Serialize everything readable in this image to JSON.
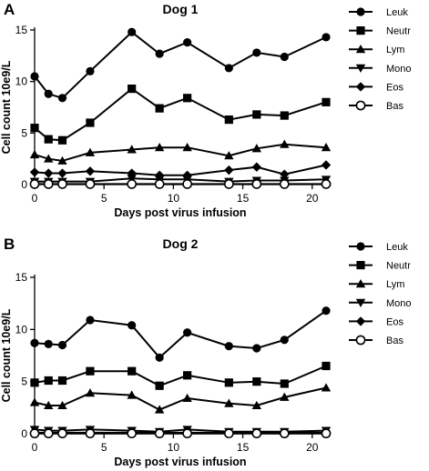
{
  "chart_data": [
    {
      "type": "line",
      "panel_label": "A",
      "title": "Dog 1",
      "xlabel": "Days post virus infusion",
      "ylabel": "Cell count 10e9/L",
      "xlim": [
        0,
        21
      ],
      "ylim": [
        0,
        15
      ],
      "xticks": [
        0,
        5,
        10,
        15,
        20
      ],
      "yticks": [
        0,
        5,
        10,
        15
      ],
      "legend_position": "right",
      "x": [
        0,
        1,
        2,
        4,
        7,
        9,
        11,
        14,
        16,
        18,
        21
      ],
      "series": [
        {
          "name": "Leuk",
          "marker": "circle-filled",
          "values": [
            10.5,
            8.8,
            8.4,
            11.0,
            14.8,
            12.7,
            13.8,
            11.3,
            12.8,
            12.4,
            14.3
          ]
        },
        {
          "name": "Neutr",
          "marker": "square-filled",
          "values": [
            5.5,
            4.4,
            4.3,
            6.0,
            9.3,
            7.4,
            8.4,
            6.3,
            6.8,
            6.7,
            8.0
          ]
        },
        {
          "name": "Lym",
          "marker": "triangle-up-filled",
          "values": [
            2.9,
            2.5,
            2.3,
            3.1,
            3.4,
            3.6,
            3.6,
            2.8,
            3.5,
            3.9,
            3.6
          ]
        },
        {
          "name": "Mono",
          "marker": "triangle-down-filled",
          "values": [
            0.3,
            0.3,
            0.3,
            0.3,
            0.6,
            0.5,
            0.5,
            0.3,
            0.4,
            0.4,
            0.5
          ]
        },
        {
          "name": "Eos",
          "marker": "diamond-filled",
          "values": [
            1.2,
            1.1,
            1.1,
            1.3,
            1.1,
            0.9,
            0.9,
            1.4,
            1.7,
            1.0,
            1.9
          ]
        },
        {
          "name": "Bas",
          "marker": "circle-open",
          "values": [
            0.05,
            0.05,
            0.05,
            0.05,
            0.05,
            0.05,
            0.05,
            0.05,
            0.05,
            0.05,
            0.05
          ]
        }
      ]
    },
    {
      "type": "line",
      "panel_label": "B",
      "title": "Dog 2",
      "xlabel": "Days post virus infusion",
      "ylabel": "Cell count 10e9/L",
      "xlim": [
        0,
        21
      ],
      "ylim": [
        0,
        15
      ],
      "xticks": [
        0,
        5,
        10,
        15,
        20
      ],
      "yticks": [
        0,
        5,
        10,
        15
      ],
      "legend_position": "right",
      "x": [
        0,
        1,
        2,
        4,
        7,
        9,
        11,
        14,
        16,
        18,
        21
      ],
      "series": [
        {
          "name": "Leuk",
          "marker": "circle-filled",
          "values": [
            8.7,
            8.6,
            8.5,
            10.9,
            10.4,
            7.3,
            9.7,
            8.4,
            8.2,
            9.0,
            11.8
          ]
        },
        {
          "name": "Neutr",
          "marker": "square-filled",
          "values": [
            4.9,
            5.1,
            5.1,
            6.0,
            6.0,
            4.6,
            5.6,
            4.9,
            5.0,
            4.8,
            6.5
          ]
        },
        {
          "name": "Lym",
          "marker": "triangle-up-filled",
          "values": [
            3.0,
            2.7,
            2.7,
            3.9,
            3.7,
            2.3,
            3.4,
            2.9,
            2.7,
            3.5,
            4.4
          ]
        },
        {
          "name": "Mono",
          "marker": "triangle-down-filled",
          "values": [
            0.4,
            0.3,
            0.3,
            0.4,
            0.3,
            0.2,
            0.4,
            0.2,
            0.2,
            0.2,
            0.3
          ]
        },
        {
          "name": "Eos",
          "marker": "diamond-filled",
          "values": [
            0.1,
            0.1,
            0.1,
            0.1,
            0.1,
            0.1,
            0.1,
            0.1,
            0.1,
            0.1,
            0.1
          ]
        },
        {
          "name": "Bas",
          "marker": "circle-open",
          "values": [
            0.03,
            0.03,
            0.03,
            0.03,
            0.03,
            0.03,
            0.03,
            0.03,
            0.03,
            0.03,
            0.03
          ]
        }
      ]
    }
  ]
}
